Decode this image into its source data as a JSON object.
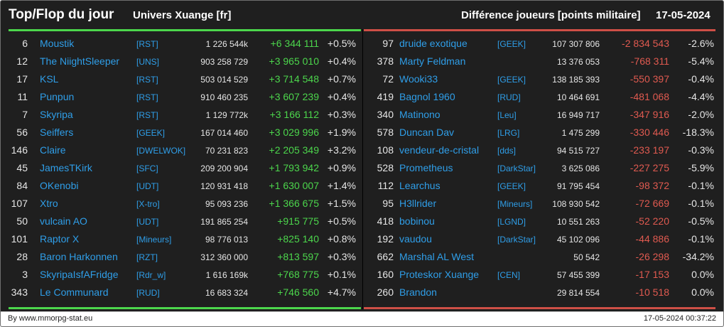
{
  "header": {
    "title": "Top/Flop du jour",
    "universe": "Univers Xuange [fr]",
    "subtitle": "Différence joueurs [points militaire]",
    "date": "17-05-2024"
  },
  "colors": {
    "positive": "#4cd64c",
    "negative": "#e05a50",
    "name": "#2f9ee8",
    "background": "#1f1f1f"
  },
  "top": [
    {
      "rank": "6",
      "name": "Moustik",
      "alliance": "[RST]",
      "points": "1 226 544k",
      "diff": "+6 344 111",
      "pct": "+0.5%"
    },
    {
      "rank": "12",
      "name": "The NiightSleeper",
      "alliance": "[UNS]",
      "points": "903 258 729",
      "diff": "+3 965 010",
      "pct": "+0.4%"
    },
    {
      "rank": "17",
      "name": "KSL",
      "alliance": "[RST]",
      "points": "503 014 529",
      "diff": "+3 714 548",
      "pct": "+0.7%"
    },
    {
      "rank": "11",
      "name": "Punpun",
      "alliance": "[RST]",
      "points": "910 460 235",
      "diff": "+3 607 239",
      "pct": "+0.4%"
    },
    {
      "rank": "7",
      "name": "Skyripa",
      "alliance": "[RST]",
      "points": "1 129 772k",
      "diff": "+3 166 112",
      "pct": "+0.3%"
    },
    {
      "rank": "56",
      "name": "Seiffers",
      "alliance": "[GEEK]",
      "points": "167 014 460",
      "diff": "+3 029 996",
      "pct": "+1.9%"
    },
    {
      "rank": "146",
      "name": "Claire",
      "alliance": "[DWELWOK]",
      "points": "70 231 823",
      "diff": "+2 205 349",
      "pct": "+3.2%"
    },
    {
      "rank": "45",
      "name": "JamesTKirk",
      "alliance": "[SFC]",
      "points": "209 200 904",
      "diff": "+1 793 942",
      "pct": "+0.9%"
    },
    {
      "rank": "84",
      "name": "OKenobi",
      "alliance": "[UDT]",
      "points": "120 931 418",
      "diff": "+1 630 007",
      "pct": "+1.4%"
    },
    {
      "rank": "107",
      "name": "Xtro",
      "alliance": "[X-tro]",
      "points": "95 093 236",
      "diff": "+1 366 675",
      "pct": "+1.5%"
    },
    {
      "rank": "50",
      "name": "vulcain AO",
      "alliance": "[UDT]",
      "points": "191 865 254",
      "diff": "+915 775",
      "pct": "+0.5%"
    },
    {
      "rank": "101",
      "name": "Raptor X",
      "alliance": "[Mineurs]",
      "points": "98 776 013",
      "diff": "+825 140",
      "pct": "+0.8%"
    },
    {
      "rank": "28",
      "name": "Baron Harkonnen",
      "alliance": "[RZT]",
      "points": "312 360 000",
      "diff": "+813 597",
      "pct": "+0.3%"
    },
    {
      "rank": "3",
      "name": "SkyripaIsfAFridge",
      "alliance": "[Rdr_w]",
      "points": "1 616 169k",
      "diff": "+768 775",
      "pct": "+0.1%"
    },
    {
      "rank": "343",
      "name": "Le Communard",
      "alliance": "[RUD]",
      "points": "16 683 324",
      "diff": "+746 560",
      "pct": "+4.7%"
    }
  ],
  "flop": [
    {
      "rank": "97",
      "name": "druide exotique",
      "alliance": "[GEEK]",
      "points": "107 307 806",
      "diff": "-2 834 543",
      "pct": "-2.6%"
    },
    {
      "rank": "378",
      "name": "Marty Feldman",
      "alliance": "",
      "points": "13 376 053",
      "diff": "-768 311",
      "pct": "-5.4%"
    },
    {
      "rank": "72",
      "name": "Wooki33",
      "alliance": "[GEEK]",
      "points": "138 185 393",
      "diff": "-550 397",
      "pct": "-0.4%"
    },
    {
      "rank": "419",
      "name": "Bagnol 1960",
      "alliance": "[RUD]",
      "points": "10 464 691",
      "diff": "-481 068",
      "pct": "-4.4%"
    },
    {
      "rank": "340",
      "name": "Matinono",
      "alliance": "[Leu]",
      "points": "16 949 717",
      "diff": "-347 916",
      "pct": "-2.0%"
    },
    {
      "rank": "578",
      "name": "Duncan Dav",
      "alliance": "[LRG]",
      "points": "1 475 299",
      "diff": "-330 446",
      "pct": "-18.3%"
    },
    {
      "rank": "108",
      "name": "vendeur-de-cristal",
      "alliance": "[dds]",
      "points": "94 515 727",
      "diff": "-233 197",
      "pct": "-0.3%"
    },
    {
      "rank": "528",
      "name": "Prometheus",
      "alliance": "[DarkStar]",
      "points": "3 625 086",
      "diff": "-227 275",
      "pct": "-5.9%"
    },
    {
      "rank": "112",
      "name": "Learchus",
      "alliance": "[GEEK]",
      "points": "91 795 454",
      "diff": "-98 372",
      "pct": "-0.1%"
    },
    {
      "rank": "95",
      "name": "H3llrider",
      "alliance": "[Mineurs]",
      "points": "108 930 542",
      "diff": "-72 669",
      "pct": "-0.1%"
    },
    {
      "rank": "418",
      "name": "bobinou",
      "alliance": "[LGND]",
      "points": "10 551 263",
      "diff": "-52 220",
      "pct": "-0.5%"
    },
    {
      "rank": "192",
      "name": "vaudou",
      "alliance": "[DarkStar]",
      "points": "45 102 096",
      "diff": "-44 886",
      "pct": "-0.1%"
    },
    {
      "rank": "662",
      "name": "Marshal AL West",
      "alliance": "",
      "points": "50 542",
      "diff": "-26 298",
      "pct": "-34.2%"
    },
    {
      "rank": "160",
      "name": "Proteskor Xuange",
      "alliance": "[CEN]",
      "points": "57 455 399",
      "diff": "-17 153",
      "pct": "0.0%"
    },
    {
      "rank": "260",
      "name": "Brandon",
      "alliance": "",
      "points": "29 814 554",
      "diff": "-10 518",
      "pct": "0.0%"
    }
  ],
  "footer": {
    "credit": "By www.mmorpg-stat.eu",
    "timestamp": "17-05-2024 00:37:22"
  }
}
